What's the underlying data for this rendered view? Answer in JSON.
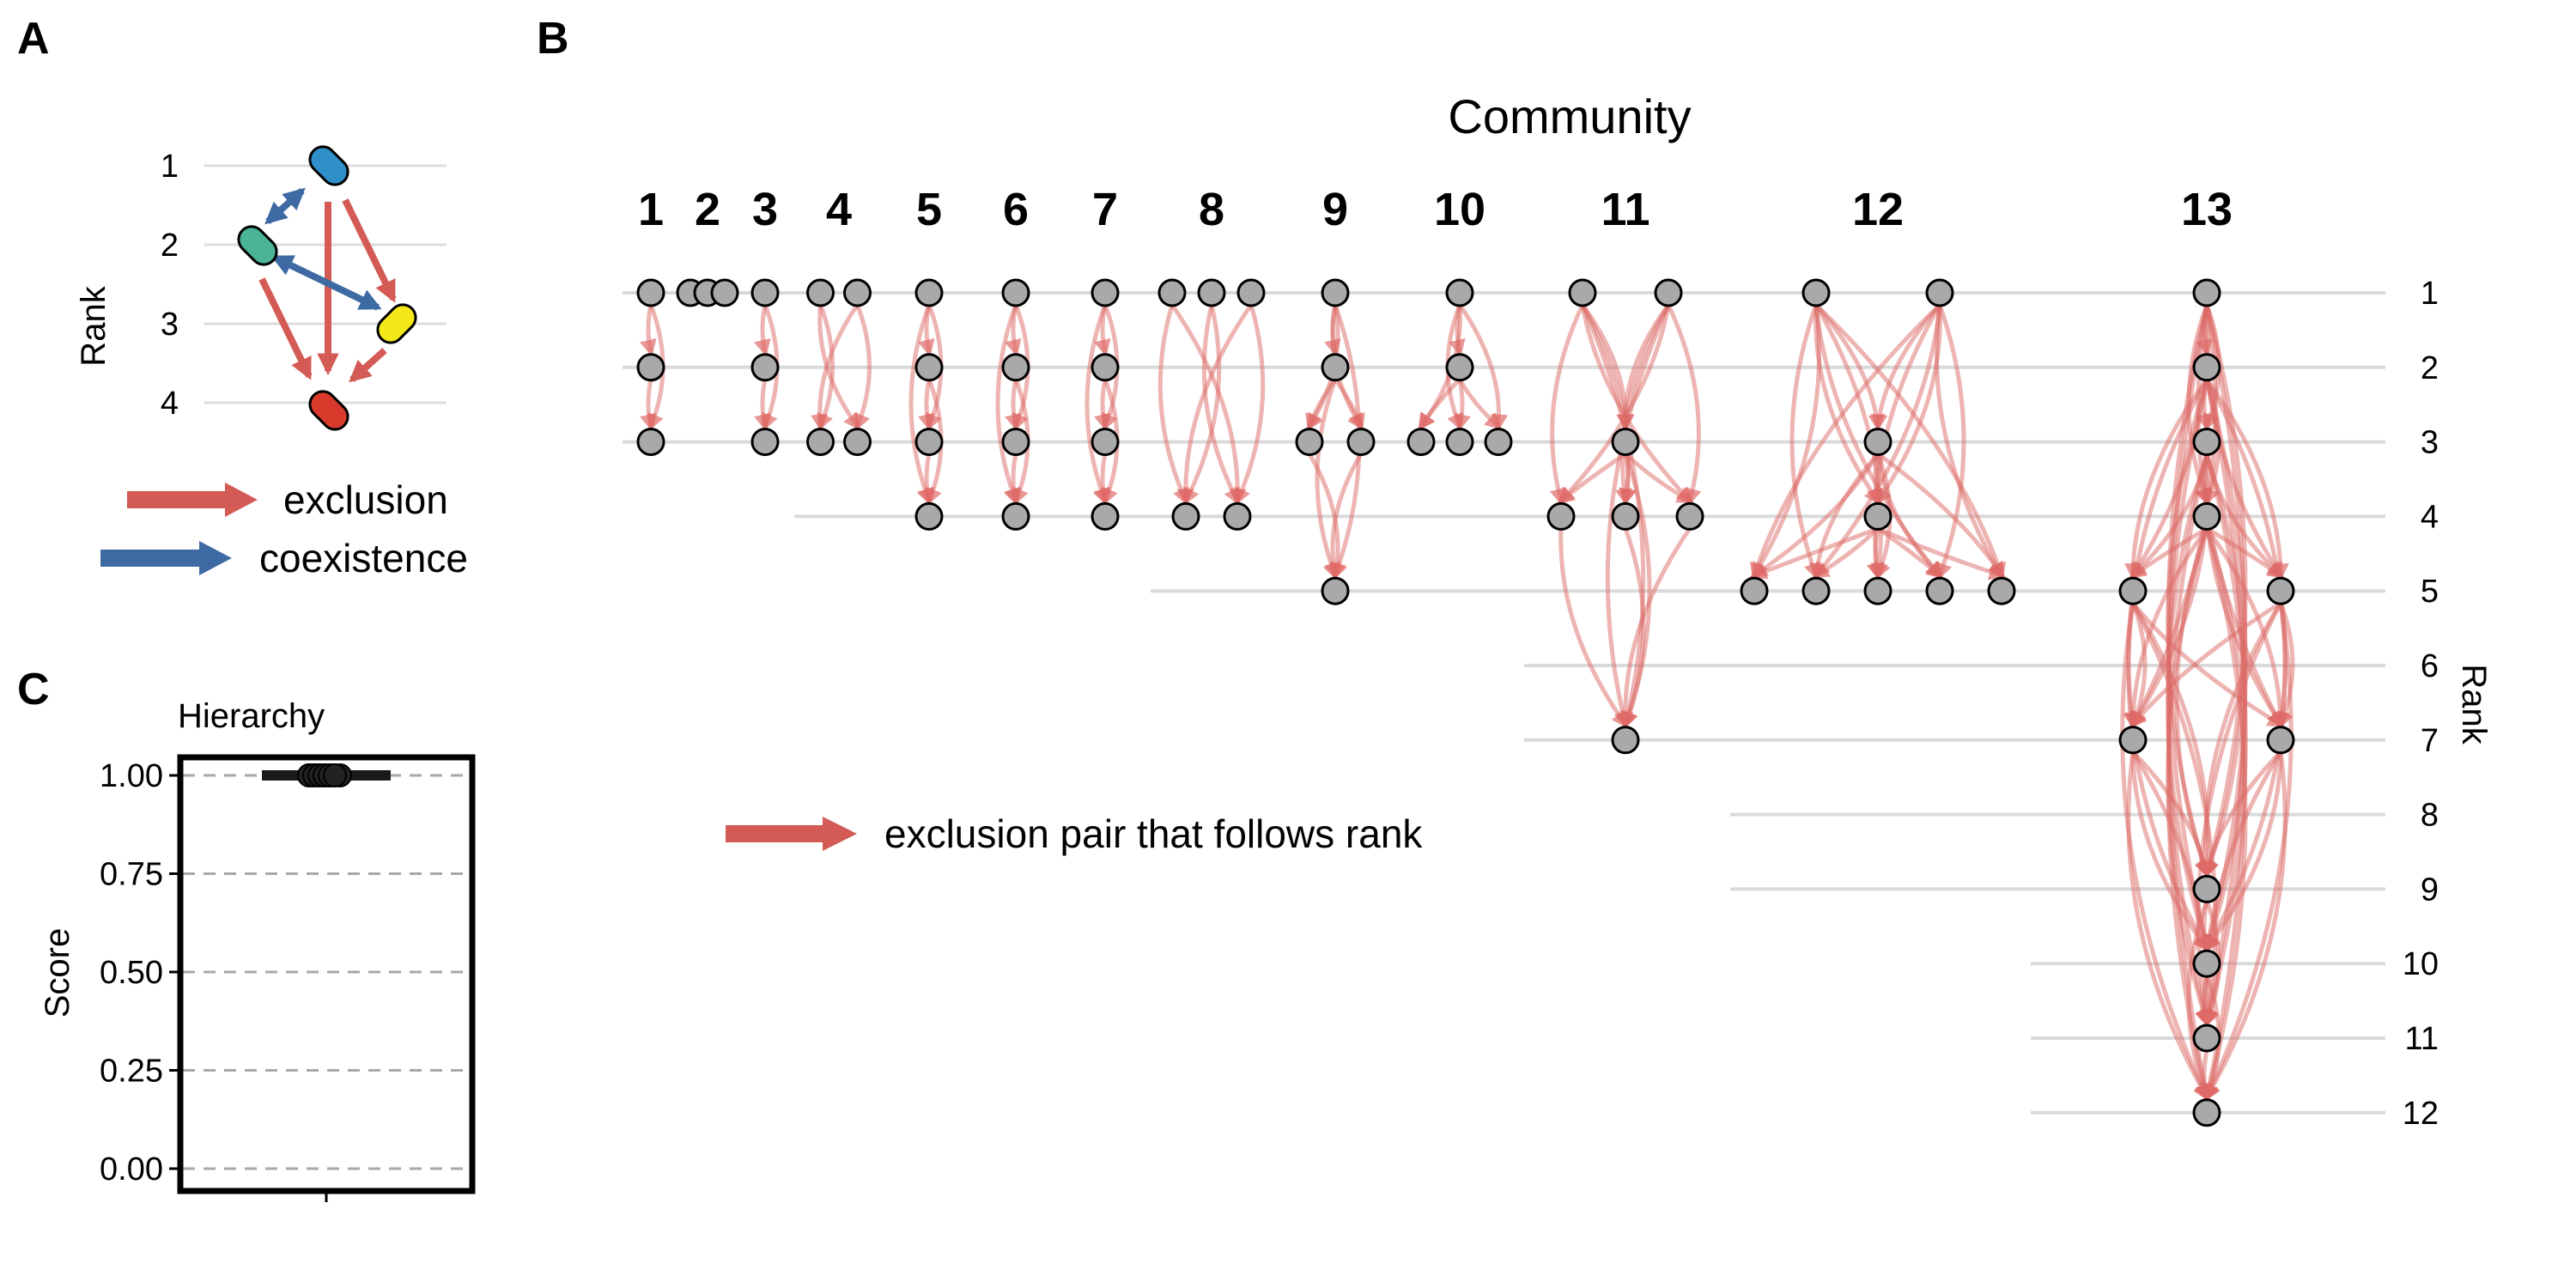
{
  "panels": {
    "a": "A",
    "b": "B",
    "c": "C"
  },
  "panel_a": {
    "ylabel": "Rank",
    "rank_ticks": [
      "1",
      "2",
      "3",
      "4"
    ],
    "species": [
      {
        "rank": 1,
        "color": "#2f8fc8"
      },
      {
        "rank": 2,
        "color": "#4bb497"
      },
      {
        "rank": 3,
        "color": "#f4e819"
      },
      {
        "rank": 4,
        "color": "#d93a2b"
      }
    ],
    "legend": [
      {
        "label": "exclusion",
        "color": "#d45a55"
      },
      {
        "label": "coexistence",
        "color": "#3d6aa3"
      }
    ]
  },
  "panel_b": {
    "title": "Community",
    "right_axis_label": "Rank",
    "rank_ticks": [
      "1",
      "2",
      "3",
      "4",
      "5",
      "6",
      "7",
      "8",
      "9",
      "10",
      "11",
      "12"
    ],
    "legend": {
      "label": "exclusion pair that follows rank",
      "color": "#d45a55"
    },
    "communities": [
      {
        "label": "1",
        "ranks": [
          [
            1
          ],
          [
            2
          ],
          [
            3
          ]
        ]
      },
      {
        "label": "2",
        "ranks": [
          [
            1,
            1,
            1
          ]
        ]
      },
      {
        "label": "3",
        "ranks": [
          [
            1
          ],
          [
            2
          ],
          [
            3
          ]
        ]
      },
      {
        "label": "4",
        "ranks": [
          [
            1,
            1
          ],
          [],
          [
            3,
            3
          ]
        ]
      },
      {
        "label": "5",
        "ranks": [
          [
            1
          ],
          [
            2
          ],
          [
            3
          ],
          [
            4
          ]
        ]
      },
      {
        "label": "6",
        "ranks": [
          [
            1
          ],
          [
            2
          ],
          [
            3
          ],
          [
            4
          ]
        ]
      },
      {
        "label": "7",
        "ranks": [
          [
            1
          ],
          [
            2
          ],
          [
            3
          ],
          [
            4
          ]
        ]
      },
      {
        "label": "8",
        "ranks": [
          [
            1,
            1,
            1
          ],
          [],
          [],
          [
            4,
            4
          ]
        ]
      },
      {
        "label": "9",
        "ranks": [
          [
            1
          ],
          [
            2
          ],
          [
            3,
            3
          ],
          [],
          [
            5
          ]
        ]
      },
      {
        "label": "10",
        "ranks": [
          [
            1
          ],
          [
            2
          ],
          [
            3,
            3,
            3
          ]
        ]
      },
      {
        "label": "11",
        "ranks": [
          [
            1,
            1
          ],
          [],
          [
            3
          ],
          [
            4,
            4,
            4
          ],
          [],
          [],
          [
            7
          ]
        ]
      },
      {
        "label": "12",
        "ranks": [
          [
            1,
            1
          ],
          [],
          [
            3
          ],
          [
            4
          ],
          [
            5,
            5,
            5,
            5,
            5
          ]
        ]
      },
      {
        "label": "13",
        "ranks": [
          [
            1
          ],
          [
            2
          ],
          [
            3
          ],
          [
            4
          ],
          [
            5,
            5
          ],
          [],
          [
            7,
            7
          ],
          [],
          [
            9
          ],
          [
            10
          ],
          [
            11
          ],
          [
            12
          ]
        ]
      }
    ]
  },
  "chart_data": {
    "type": "scatter",
    "title": "Hierarchy",
    "xlabel": "",
    "ylabel": "Score",
    "ylim": [
      0,
      1
    ],
    "yticks": [
      "0.00",
      "0.25",
      "0.50",
      "0.75",
      "1.00"
    ],
    "points": [
      1.0,
      1.0,
      1.0,
      1.0,
      1.0,
      1.0,
      1.0,
      1.0,
      1.0,
      1.0,
      1.0,
      1.0,
      1.0
    ],
    "summary": {
      "median": 1.0,
      "q1": 1.0,
      "q3": 1.0,
      "min": 1.0,
      "max": 1.0
    },
    "grid": "horizontal dashed"
  }
}
